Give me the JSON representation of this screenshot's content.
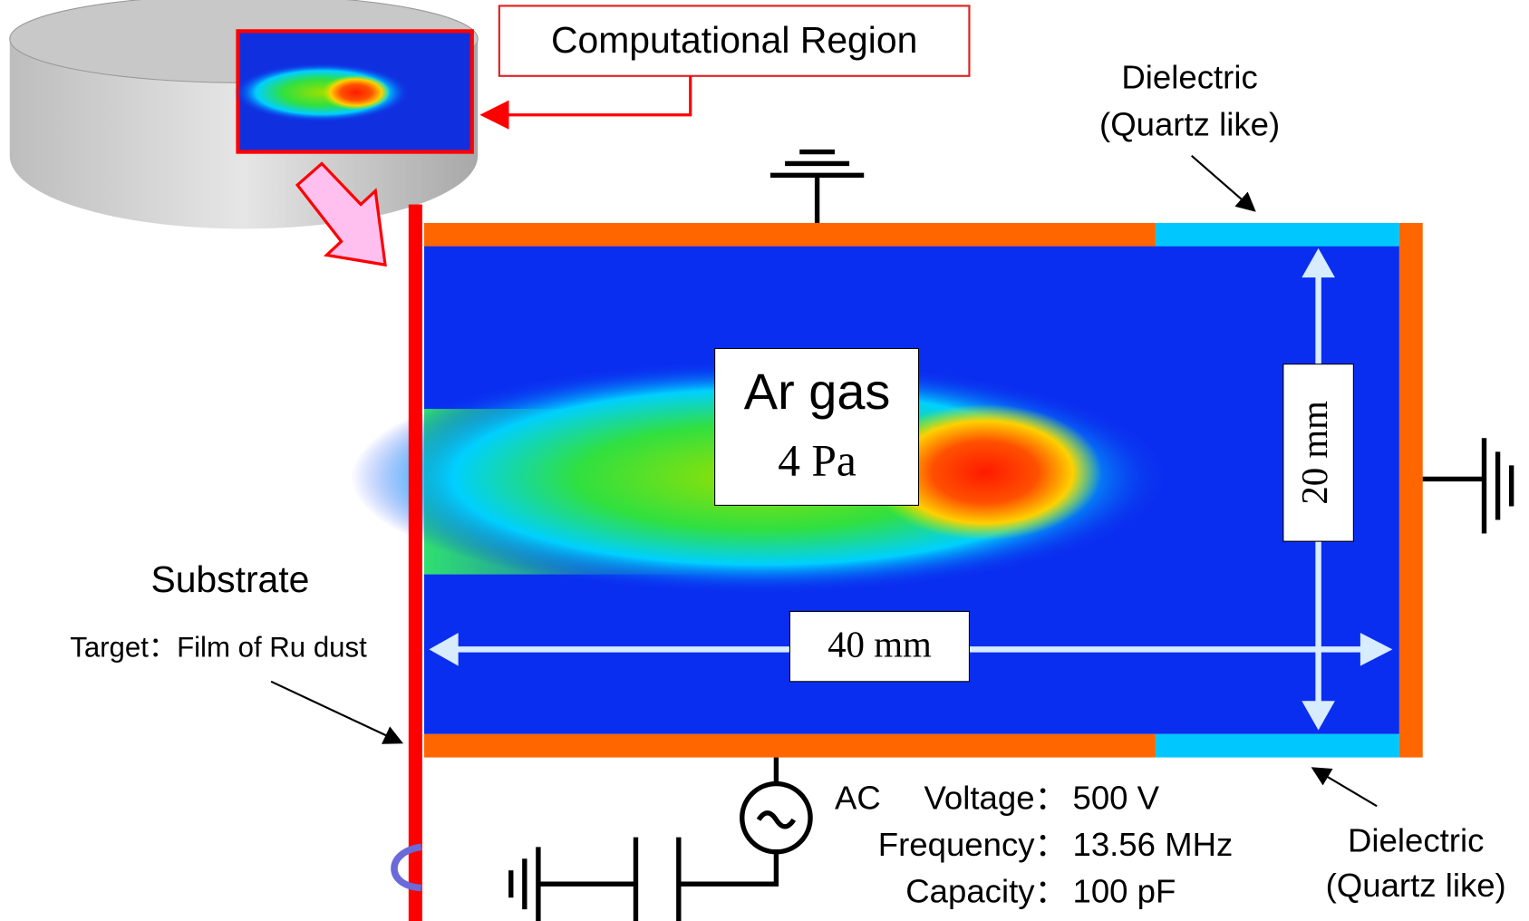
{
  "region_label": "Computational Region",
  "dielectric_top": {
    "line1": "Dielectric",
    "line2": "(Quartz like)"
  },
  "dielectric_bottom": {
    "line1": "Dielectric",
    "line2": "(Quartz like)"
  },
  "gas": {
    "name": "Ar gas",
    "pressure": "4 Pa"
  },
  "dimensions": {
    "height": "20 mm",
    "width": "40 mm"
  },
  "substrate": {
    "title": "Substrate",
    "target": "Target：Film of Ru dust"
  },
  "source": {
    "type": "AC",
    "params": [
      {
        "name": "Voltage：",
        "value": "500 V"
      },
      {
        "name": "Frequency：",
        "value": "13.56 MHz"
      },
      {
        "name": "Capacity：",
        "value": "100 pF"
      }
    ]
  }
}
